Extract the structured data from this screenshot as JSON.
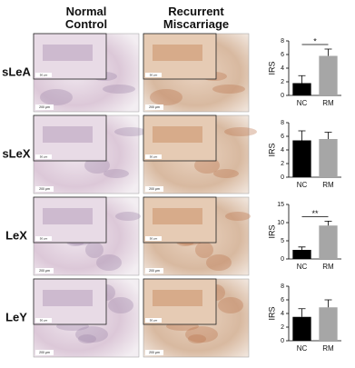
{
  "figure": {
    "columns": [
      "Normal\nControl",
      "Recurrent\nMiscarriage"
    ],
    "rows": [
      "sLeA",
      "sLeX",
      "LeX",
      "LeY"
    ],
    "scale_bar_labels": {
      "main": "200 μm",
      "inset": "50 μm"
    }
  },
  "chart_data": [
    {
      "type": "bar",
      "ylabel": "IRS",
      "categories": [
        "NC",
        "RM"
      ],
      "values": [
        1.8,
        5.8
      ],
      "errors": [
        1.1,
        1.0
      ],
      "colors": [
        "#000000",
        "#a6a6a6"
      ],
      "ylim": [
        0,
        8
      ],
      "yticks": [
        0,
        2,
        4,
        6,
        8
      ],
      "significance": "*"
    },
    {
      "type": "bar",
      "ylabel": "IRS",
      "categories": [
        "NC",
        "RM"
      ],
      "values": [
        5.4,
        5.6
      ],
      "errors": [
        1.4,
        1.0
      ],
      "colors": [
        "#000000",
        "#a6a6a6"
      ],
      "ylim": [
        0,
        8
      ],
      "yticks": [
        0,
        2,
        4,
        6,
        8
      ]
    },
    {
      "type": "bar",
      "ylabel": "IRS",
      "categories": [
        "NC",
        "RM"
      ],
      "values": [
        2.5,
        9.2
      ],
      "errors": [
        0.8,
        1.2
      ],
      "colors": [
        "#000000",
        "#a6a6a6"
      ],
      "ylim": [
        0,
        15
      ],
      "yticks": [
        0,
        5,
        10,
        15
      ],
      "significance": "**"
    },
    {
      "type": "bar",
      "ylabel": "IRS",
      "categories": [
        "NC",
        "RM"
      ],
      "values": [
        3.5,
        4.9
      ],
      "errors": [
        1.2,
        1.1
      ],
      "colors": [
        "#000000",
        "#a6a6a6"
      ],
      "ylim": [
        0,
        8
      ],
      "yticks": [
        0,
        2,
        4,
        6,
        8
      ]
    }
  ]
}
